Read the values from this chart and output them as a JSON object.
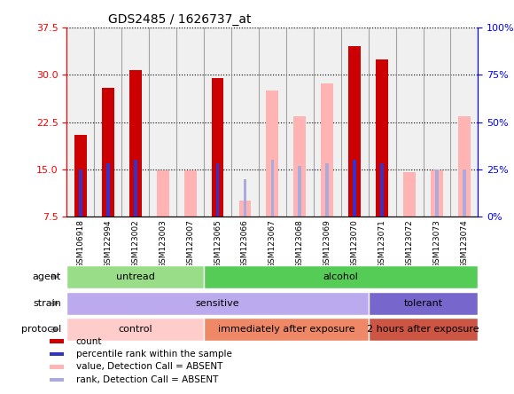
{
  "title": "GDS2485 / 1626737_at",
  "samples": [
    "GSM106918",
    "GSM122994",
    "GSM123002",
    "GSM123003",
    "GSM123007",
    "GSM123065",
    "GSM123066",
    "GSM123067",
    "GSM123068",
    "GSM123069",
    "GSM123070",
    "GSM123071",
    "GSM123072",
    "GSM123073",
    "GSM123074"
  ],
  "count_values": [
    20.5,
    28.0,
    30.8,
    null,
    null,
    29.5,
    null,
    null,
    null,
    null,
    34.5,
    32.5,
    null,
    null,
    null
  ],
  "count_absent_values": [
    null,
    null,
    null,
    14.8,
    14.8,
    null,
    10.0,
    27.5,
    23.5,
    28.7,
    null,
    null,
    14.5,
    14.8,
    23.5
  ],
  "percentile_values": [
    15.0,
    16.0,
    16.5,
    null,
    null,
    16.0,
    null,
    null,
    null,
    null,
    16.5,
    16.0,
    null,
    null,
    null
  ],
  "percentile_absent_values": [
    null,
    null,
    null,
    null,
    null,
    null,
    13.5,
    16.5,
    15.5,
    16.0,
    null,
    null,
    null,
    15.0,
    15.0
  ],
  "ylim_left": [
    7.5,
    37.5
  ],
  "ylim_right": [
    0,
    100
  ],
  "yticks_left": [
    7.5,
    15.0,
    22.5,
    30.0,
    37.5
  ],
  "yticks_right": [
    0,
    25,
    50,
    75,
    100
  ],
  "count_color": "#cc0000",
  "count_absent_color": "#ffb3b3",
  "percentile_color": "#3333cc",
  "percentile_absent_color": "#aaaadd",
  "annotation_rows": [
    {
      "label": "agent",
      "segments": [
        {
          "start": 0,
          "end": 5,
          "text": "untread",
          "color": "#99dd88"
        },
        {
          "start": 5,
          "end": 15,
          "text": "alcohol",
          "color": "#55cc55"
        }
      ]
    },
    {
      "label": "strain",
      "segments": [
        {
          "start": 0,
          "end": 11,
          "text": "sensitive",
          "color": "#bbaaee"
        },
        {
          "start": 11,
          "end": 15,
          "text": "tolerant",
          "color": "#7766cc"
        }
      ]
    },
    {
      "label": "protocol",
      "segments": [
        {
          "start": 0,
          "end": 5,
          "text": "control",
          "color": "#ffcccc"
        },
        {
          "start": 5,
          "end": 11,
          "text": "immediately after exposure",
          "color": "#ee8866"
        },
        {
          "start": 11,
          "end": 15,
          "text": "2 hours after exposure",
          "color": "#cc5544"
        }
      ]
    }
  ],
  "legend_items": [
    {
      "color": "#cc0000",
      "label": "count"
    },
    {
      "color": "#3333cc",
      "label": "percentile rank within the sample"
    },
    {
      "color": "#ffb3b3",
      "label": "value, Detection Call = ABSENT"
    },
    {
      "color": "#aaaadd",
      "label": "rank, Detection Call = ABSENT"
    }
  ]
}
